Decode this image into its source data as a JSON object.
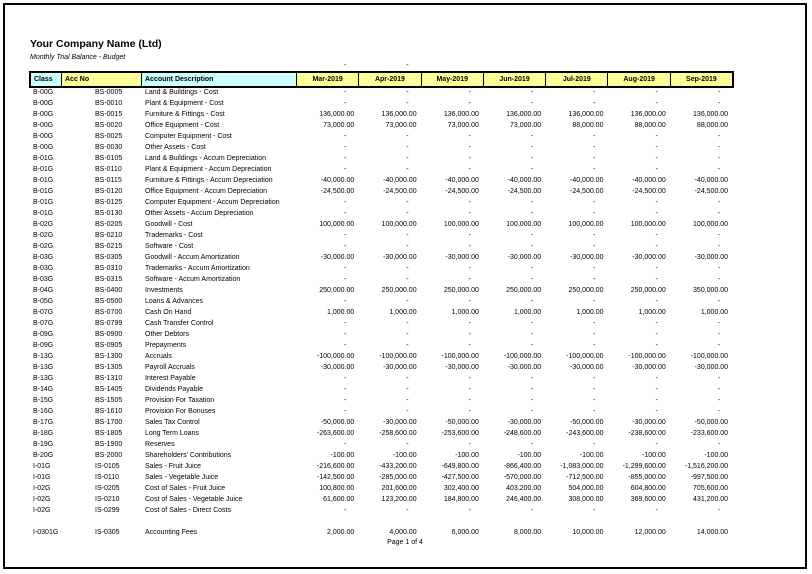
{
  "page": {
    "company_name": "Your Company Name (Ltd)",
    "report_title": "Monthly Trial Balance - Budget",
    "footer": "Page 1 of 4"
  },
  "colors": {
    "header_cyan": "#CCFFFF",
    "header_yellow": "#FFFF99",
    "border": "#000000",
    "text": "#000000"
  },
  "table": {
    "columns": [
      "Class",
      "Acc No",
      "Account Description",
      "Mar-2019",
      "Apr-2019",
      "May-2019",
      "Jun-2019",
      "Jul-2019",
      "Aug-2019",
      "Sep-2019"
    ],
    "pre_header_row": [
      "",
      "",
      "",
      "-",
      "-",
      "",
      "",
      "",
      "",
      ""
    ],
    "rows": [
      {
        "class": "B-00G",
        "acc_no": "BS-0005",
        "description": "Land & Buildings - Cost",
        "values": [
          "-",
          "-",
          "-",
          "-",
          "-",
          "-",
          "-"
        ]
      },
      {
        "class": "B-00G",
        "acc_no": "BS-0010",
        "description": "Plant & Equipment - Cost",
        "values": [
          "-",
          "-",
          "-",
          "-",
          "-",
          "-",
          "-"
        ]
      },
      {
        "class": "B-00G",
        "acc_no": "BS-0015",
        "description": "Furniture & Fittings - Cost",
        "values": [
          "136,000.00",
          "136,000.00",
          "136,000.00",
          "136,000.00",
          "136,000.00",
          "136,000.00",
          "136,000.00"
        ]
      },
      {
        "class": "B-00G",
        "acc_no": "BS-0020",
        "description": "Office Equipment - Cost",
        "values": [
          "73,000.00",
          "73,000.00",
          "73,000.00",
          "73,000.00",
          "88,000.00",
          "88,000.00",
          "88,000.00"
        ]
      },
      {
        "class": "B-00G",
        "acc_no": "BS-0025",
        "description": "Computer Equipment - Cost",
        "values": [
          "-",
          "-",
          "-",
          "-",
          "-",
          "-",
          "-"
        ]
      },
      {
        "class": "B-00G",
        "acc_no": "BS-0030",
        "description": "Other Assets - Cost",
        "values": [
          "-",
          "-",
          "-",
          "-",
          "-",
          "-",
          "-"
        ]
      },
      {
        "class": "B-01G",
        "acc_no": "BS-0105",
        "description": "Land & Buildings - Accum Depreciation",
        "values": [
          "-",
          "-",
          "-",
          "-",
          "-",
          "-",
          "-"
        ]
      },
      {
        "class": "B-01G",
        "acc_no": "BS-0110",
        "description": "Plant & Equipment - Accum Depreciation",
        "values": [
          "-",
          "-",
          "-",
          "-",
          "-",
          "-",
          "-"
        ]
      },
      {
        "class": "B-01G",
        "acc_no": "BS-0115",
        "description": "Furniture & Fittings - Accum Depreciation",
        "values": [
          "-40,000.00",
          "-40,000.00",
          "-40,000.00",
          "-40,000.00",
          "-40,000.00",
          "-40,000.00",
          "-40,000.00"
        ]
      },
      {
        "class": "B-01G",
        "acc_no": "BS-0120",
        "description": "Office Equipment - Accum Depreciation",
        "values": [
          "-24,500.00",
          "-24,500.00",
          "-24,500.00",
          "-24,500.00",
          "-24,500.00",
          "-24,500.00",
          "-24,500.00"
        ]
      },
      {
        "class": "B-01G",
        "acc_no": "BS-0125",
        "description": "Computer Equipment - Accum Depreciation",
        "values": [
          "-",
          "-",
          "-",
          "-",
          "-",
          "-",
          "-"
        ]
      },
      {
        "class": "B-01G",
        "acc_no": "BS-0130",
        "description": "Other Assets - Accum Depreciation",
        "values": [
          "-",
          "-",
          "-",
          "-",
          "-",
          "-",
          "-"
        ]
      },
      {
        "class": "B-02G",
        "acc_no": "BS-0205",
        "description": "Goodwill - Cost",
        "values": [
          "100,000.00",
          "100,000.00",
          "100,000.00",
          "100,000.00",
          "100,000.00",
          "100,000.00",
          "100,000.00"
        ]
      },
      {
        "class": "B-02G",
        "acc_no": "BS-0210",
        "description": "Trademarks - Cost",
        "values": [
          "-",
          "-",
          "-",
          "-",
          "-",
          "-",
          "-"
        ]
      },
      {
        "class": "B-02G",
        "acc_no": "BS-0215",
        "description": "Software - Cost",
        "values": [
          "-",
          "-",
          "-",
          "-",
          "-",
          "-",
          "-"
        ]
      },
      {
        "class": "B-03G",
        "acc_no": "BS-0305",
        "description": "Goodwill - Accum Amortization",
        "values": [
          "-30,000.00",
          "-30,000.00",
          "-30,000.00",
          "-30,000.00",
          "-30,000.00",
          "-30,000.00",
          "-30,000.00"
        ]
      },
      {
        "class": "B-03G",
        "acc_no": "BS-0310",
        "description": "Trademarks - Accum Amortization",
        "values": [
          "-",
          "-",
          "-",
          "-",
          "-",
          "-",
          "-"
        ]
      },
      {
        "class": "B-03G",
        "acc_no": "BS-0315",
        "description": "Software - Accum Amortization",
        "values": [
          "-",
          "-",
          "-",
          "-",
          "-",
          "-",
          "-"
        ]
      },
      {
        "class": "B-04G",
        "acc_no": "BS-0400",
        "description": "Investments",
        "values": [
          "250,000.00",
          "250,000.00",
          "250,000.00",
          "250,000.00",
          "250,000.00",
          "250,000.00",
          "350,000.00"
        ]
      },
      {
        "class": "B-05G",
        "acc_no": "BS-0500",
        "description": "Loans & Advances",
        "values": [
          "-",
          "-",
          "-",
          "-",
          "-",
          "-",
          "-"
        ]
      },
      {
        "class": "B-07G",
        "acc_no": "BS-0700",
        "description": "Cash On Hand",
        "values": [
          "1,000.00",
          "1,000.00",
          "1,000.00",
          "1,000.00",
          "1,000.00",
          "1,000.00",
          "1,000.00"
        ]
      },
      {
        "class": "B-07G",
        "acc_no": "BS-0799",
        "description": "Cash Transfer Control",
        "values": [
          "-",
          "-",
          "-",
          "-",
          "-",
          "-",
          "-"
        ]
      },
      {
        "class": "B-09G",
        "acc_no": "BS-0900",
        "description": "Other Debtors",
        "values": [
          "-",
          "-",
          "-",
          "-",
          "-",
          "-",
          "-"
        ]
      },
      {
        "class": "B-09G",
        "acc_no": "BS-0905",
        "description": "Prepayments",
        "values": [
          "-",
          "-",
          "-",
          "-",
          "-",
          "-",
          "-"
        ]
      },
      {
        "class": "B-13G",
        "acc_no": "BS-1300",
        "description": "Accruals",
        "values": [
          "-100,000.00",
          "-100,000.00",
          "-100,000.00",
          "-100,000.00",
          "-100,000.00",
          "-100,000.00",
          "-100,000.00"
        ]
      },
      {
        "class": "B-13G",
        "acc_no": "BS-1305",
        "description": "Payroll Accruals",
        "values": [
          "-30,000.00",
          "-30,000.00",
          "-30,000.00",
          "-30,000.00",
          "-30,000.00",
          "-30,000.00",
          "-30,000.00"
        ]
      },
      {
        "class": "B-13G",
        "acc_no": "BS-1310",
        "description": "Interest Payable",
        "values": [
          "-",
          "-",
          "-",
          "-",
          "-",
          "-",
          "-"
        ]
      },
      {
        "class": "B-14G",
        "acc_no": "BS-1405",
        "description": "Dividends Payable",
        "values": [
          "-",
          "-",
          "-",
          "-",
          "-",
          "-",
          "-"
        ]
      },
      {
        "class": "B-15G",
        "acc_no": "BS-1505",
        "description": "Provision For Taxation",
        "values": [
          "-",
          "-",
          "-",
          "-",
          "-",
          "-",
          "-"
        ]
      },
      {
        "class": "B-16G",
        "acc_no": "BS-1610",
        "description": "Provision For Bonuses",
        "values": [
          "-",
          "-",
          "-",
          "-",
          "-",
          "-",
          "-"
        ]
      },
      {
        "class": "B-17G",
        "acc_no": "BS-1700",
        "description": "Sales Tax Control",
        "values": [
          "-50,000.00",
          "-30,000.00",
          "-50,000.00",
          "-30,000.00",
          "-50,000.00",
          "-30,000.00",
          "-50,000.00"
        ]
      },
      {
        "class": "B-18G",
        "acc_no": "BS-1805",
        "description": "Long Term Loans",
        "values": [
          "-263,600.00",
          "-258,600.00",
          "-253,600.00",
          "-248,600.00",
          "-243,600.00",
          "-238,600.00",
          "-233,600.00"
        ]
      },
      {
        "class": "B-19G",
        "acc_no": "BS-1900",
        "description": "Reserves",
        "values": [
          "-",
          "-",
          "-",
          "-",
          "-",
          "-",
          "-"
        ]
      },
      {
        "class": "B-20G",
        "acc_no": "BS-2000",
        "description": "Shareholders' Contributions",
        "values": [
          "-100.00",
          "-100.00",
          "-100.00",
          "-100.00",
          "-100.00",
          "-100.00",
          "-100.00"
        ]
      },
      {
        "class": "I-01G",
        "acc_no": "IS-0105",
        "description": "Sales - Fruit Juice",
        "values": [
          "-216,600.00",
          "-433,200.00",
          "-649,800.00",
          "-866,400.00",
          "-1,083,000.00",
          "-1,299,600.00",
          "-1,516,200.00"
        ]
      },
      {
        "class": "I-01G",
        "acc_no": "IS-0110",
        "description": "Sales - Vegetable Juice",
        "values": [
          "-142,500.00",
          "-285,000.00",
          "-427,500.00",
          "-570,000.00",
          "-712,500.00",
          "-855,000.00",
          "-997,500.00"
        ]
      },
      {
        "class": "I-02G",
        "acc_no": "IS-0205",
        "description": "Cost of Sales - Fruit Juice",
        "values": [
          "100,800.00",
          "201,600.00",
          "302,400.00",
          "403,200.00",
          "504,000.00",
          "604,800.00",
          "705,600.00"
        ]
      },
      {
        "class": "I-02G",
        "acc_no": "IS-0210",
        "description": "Cost of Sales - Vegetable Juice",
        "values": [
          "61,600.00",
          "123,200.00",
          "184,800.00",
          "246,400.00",
          "308,000.00",
          "369,600.00",
          "431,200.00"
        ]
      },
      {
        "class": "I-02G",
        "acc_no": "IS-0299",
        "description": "Cost of Sales - Direct Costs",
        "values": [
          "-",
          "-",
          "-",
          "-",
          "-",
          "-",
          "-"
        ]
      },
      {
        "blank": true
      },
      {
        "class": "I-0301G",
        "acc_no": "IS-0305",
        "description": "Accounting Fees",
        "values": [
          "2,000.00",
          "4,000.00",
          "6,000.00",
          "8,000.00",
          "10,000.00",
          "12,000.00",
          "14,000.00"
        ]
      }
    ]
  }
}
